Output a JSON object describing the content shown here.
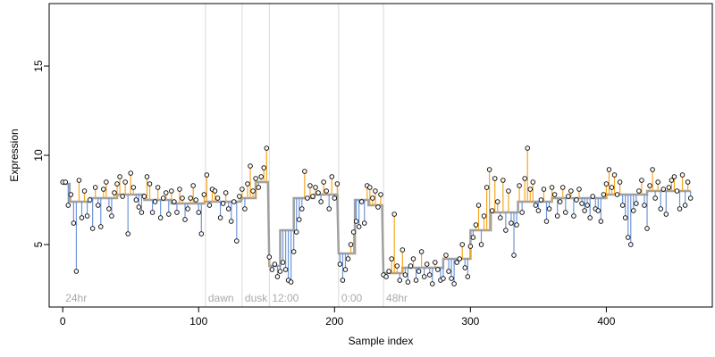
{
  "chart_data": {
    "type": "scatter",
    "title": "",
    "xlabel": "Sample index",
    "ylabel": "Expression",
    "xlim": [
      -10,
      478
    ],
    "ylim": [
      1.5,
      18.5
    ],
    "xticks": [
      0,
      100,
      200,
      300,
      400
    ],
    "yticks": [
      5,
      10,
      15
    ],
    "grid": false,
    "legend": "none",
    "phases": [
      {
        "label": "24hr",
        "start": 0,
        "divider": null
      },
      {
        "label": "dawn",
        "start": 105,
        "divider": 105
      },
      {
        "label": "dusk",
        "start": 132,
        "divider": 132
      },
      {
        "label": "12:00",
        "start": 152,
        "divider": 152
      },
      {
        "label": "0:00",
        "start": 203,
        "divider": 203
      },
      {
        "label": "48hr",
        "start": 236,
        "divider": 236
      }
    ],
    "colors": {
      "fit_line": "#a0a0a0",
      "above": "#f5a623",
      "below": "#6f96d8",
      "divider": "#d9d9d9",
      "phase_label": "#aaaaaa"
    },
    "segments": [
      {
        "x0": 0,
        "x1": 5,
        "y": 8.4
      },
      {
        "x0": 5,
        "x1": 20,
        "y": 7.4
      },
      {
        "x0": 20,
        "x1": 40,
        "y": 7.6
      },
      {
        "x0": 40,
        "x1": 60,
        "y": 7.8
      },
      {
        "x0": 60,
        "x1": 80,
        "y": 7.5
      },
      {
        "x0": 80,
        "x1": 104,
        "y": 7.3
      },
      {
        "x0": 105,
        "x1": 131,
        "y": 7.4
      },
      {
        "x0": 132,
        "x1": 142,
        "y": 7.6
      },
      {
        "x0": 142,
        "x1": 151,
        "y": 8.5
      },
      {
        "x0": 152,
        "x1": 160,
        "y": 3.8
      },
      {
        "x0": 160,
        "x1": 170,
        "y": 5.8
      },
      {
        "x0": 170,
        "x1": 185,
        "y": 7.6
      },
      {
        "x0": 185,
        "x1": 202,
        "y": 7.8
      },
      {
        "x0": 203,
        "x1": 215,
        "y": 4.5
      },
      {
        "x0": 215,
        "x1": 225,
        "y": 7.5
      },
      {
        "x0": 225,
        "x1": 235,
        "y": 7.2
      },
      {
        "x0": 236,
        "x1": 250,
        "y": 3.4
      },
      {
        "x0": 250,
        "x1": 280,
        "y": 3.7
      },
      {
        "x0": 280,
        "x1": 300,
        "y": 4.2
      },
      {
        "x0": 300,
        "x1": 315,
        "y": 5.8
      },
      {
        "x0": 315,
        "x1": 335,
        "y": 6.8
      },
      {
        "x0": 335,
        "x1": 360,
        "y": 7.4
      },
      {
        "x0": 360,
        "x1": 400,
        "y": 7.6
      },
      {
        "x0": 400,
        "x1": 430,
        "y": 7.8
      },
      {
        "x0": 430,
        "x1": 462,
        "y": 8.0
      }
    ],
    "points": [
      [
        0,
        8.5
      ],
      [
        2,
        8.5
      ],
      [
        4,
        7.2
      ],
      [
        6,
        7.8
      ],
      [
        8,
        6.2
      ],
      [
        10,
        3.5
      ],
      [
        12,
        8.6
      ],
      [
        14,
        6.5
      ],
      [
        16,
        8.0
      ],
      [
        18,
        6.6
      ],
      [
        20,
        7.5
      ],
      [
        22,
        5.9
      ],
      [
        24,
        8.2
      ],
      [
        26,
        7.2
      ],
      [
        28,
        6.0
      ],
      [
        30,
        8.1
      ],
      [
        32,
        8.5
      ],
      [
        34,
        7.0
      ],
      [
        36,
        6.6
      ],
      [
        38,
        7.9
      ],
      [
        40,
        8.4
      ],
      [
        42,
        8.8
      ],
      [
        44,
        7.7
      ],
      [
        46,
        8.5
      ],
      [
        48,
        5.6
      ],
      [
        50,
        9.0
      ],
      [
        52,
        8.2
      ],
      [
        54,
        7.5
      ],
      [
        56,
        7.1
      ],
      [
        58,
        6.8
      ],
      [
        60,
        7.7
      ],
      [
        62,
        8.8
      ],
      [
        64,
        8.4
      ],
      [
        66,
        6.8
      ],
      [
        68,
        7.4
      ],
      [
        70,
        8.2
      ],
      [
        72,
        6.5
      ],
      [
        74,
        7.6
      ],
      [
        76,
        7.9
      ],
      [
        78,
        6.7
      ],
      [
        80,
        8.0
      ],
      [
        82,
        7.4
      ],
      [
        84,
        6.8
      ],
      [
        86,
        8.1
      ],
      [
        88,
        7.6
      ],
      [
        90,
        6.4
      ],
      [
        92,
        7.0
      ],
      [
        94,
        7.6
      ],
      [
        96,
        8.3
      ],
      [
        98,
        7.5
      ],
      [
        100,
        6.8
      ],
      [
        102,
        5.6
      ],
      [
        104,
        7.8
      ],
      [
        106,
        8.9
      ],
      [
        108,
        7.2
      ],
      [
        110,
        8.1
      ],
      [
        112,
        8.0
      ],
      [
        114,
        7.6
      ],
      [
        116,
        6.5
      ],
      [
        118,
        7.3
      ],
      [
        120,
        7.9
      ],
      [
        122,
        7.0
      ],
      [
        124,
        6.3
      ],
      [
        126,
        7.4
      ],
      [
        128,
        5.2
      ],
      [
        130,
        7.7
      ],
      [
        132,
        8.1
      ],
      [
        134,
        7.0
      ],
      [
        136,
        8.4
      ],
      [
        138,
        9.4
      ],
      [
        140,
        8.0
      ],
      [
        142,
        8.7
      ],
      [
        144,
        8.2
      ],
      [
        146,
        8.8
      ],
      [
        148,
        9.3
      ],
      [
        150,
        10.4
      ],
      [
        152,
        4.3
      ],
      [
        154,
        3.6
      ],
      [
        156,
        3.9
      ],
      [
        158,
        3.2
      ],
      [
        160,
        3.5
      ],
      [
        162,
        4.0
      ],
      [
        164,
        3.6
      ],
      [
        166,
        3.0
      ],
      [
        168,
        2.9
      ],
      [
        170,
        4.6
      ],
      [
        172,
        5.7
      ],
      [
        174,
        6.4
      ],
      [
        176,
        7.0
      ],
      [
        178,
        9.1
      ],
      [
        180,
        7.6
      ],
      [
        182,
        8.3
      ],
      [
        184,
        7.7
      ],
      [
        186,
        8.2
      ],
      [
        188,
        7.9
      ],
      [
        190,
        7.4
      ],
      [
        192,
        8.5
      ],
      [
        194,
        8.0
      ],
      [
        196,
        7.0
      ],
      [
        198,
        8.8
      ],
      [
        200,
        7.6
      ],
      [
        202,
        8.4
      ],
      [
        204,
        3.9
      ],
      [
        206,
        3.0
      ],
      [
        208,
        3.6
      ],
      [
        210,
        4.2
      ],
      [
        212,
        5.0
      ],
      [
        214,
        5.7
      ],
      [
        216,
        6.3
      ],
      [
        218,
        6.0
      ],
      [
        220,
        7.4
      ],
      [
        222,
        6.2
      ],
      [
        224,
        8.3
      ],
      [
        226,
        8.2
      ],
      [
        228,
        7.6
      ],
      [
        230,
        8.0
      ],
      [
        232,
        7.1
      ],
      [
        234,
        7.8
      ],
      [
        236,
        3.3
      ],
      [
        238,
        3.2
      ],
      [
        240,
        3.5
      ],
      [
        242,
        4.2
      ],
      [
        244,
        6.7
      ],
      [
        246,
        3.8
      ],
      [
        248,
        3.0
      ],
      [
        250,
        4.7
      ],
      [
        252,
        3.3
      ],
      [
        254,
        2.9
      ],
      [
        256,
        3.8
      ],
      [
        258,
        4.2
      ],
      [
        260,
        3.0
      ],
      [
        262,
        3.5
      ],
      [
        264,
        4.6
      ],
      [
        266,
        3.2
      ],
      [
        268,
        3.9
      ],
      [
        270,
        3.3
      ],
      [
        272,
        2.8
      ],
      [
        274,
        4.0
      ],
      [
        276,
        3.6
      ],
      [
        278,
        3.0
      ],
      [
        280,
        3.1
      ],
      [
        282,
        4.4
      ],
      [
        284,
        3.5
      ],
      [
        286,
        3.1
      ],
      [
        288,
        2.8
      ],
      [
        290,
        4.0
      ],
      [
        292,
        4.2
      ],
      [
        294,
        5.0
      ],
      [
        296,
        3.7
      ],
      [
        298,
        3.2
      ],
      [
        300,
        4.9
      ],
      [
        302,
        5.4
      ],
      [
        304,
        6.1
      ],
      [
        306,
        7.2
      ],
      [
        308,
        5.0
      ],
      [
        310,
        6.6
      ],
      [
        312,
        8.2
      ],
      [
        314,
        9.2
      ],
      [
        316,
        6.9
      ],
      [
        318,
        8.7
      ],
      [
        320,
        7.4
      ],
      [
        322,
        6.5
      ],
      [
        324,
        8.6
      ],
      [
        326,
        5.8
      ],
      [
        328,
        8.0
      ],
      [
        330,
        6.2
      ],
      [
        332,
        4.4
      ],
      [
        334,
        6.1
      ],
      [
        336,
        8.3
      ],
      [
        338,
        6.8
      ],
      [
        340,
        8.7
      ],
      [
        342,
        10.4
      ],
      [
        344,
        8.1
      ],
      [
        346,
        8.5
      ],
      [
        348,
        7.2
      ],
      [
        350,
        6.9
      ],
      [
        352,
        7.5
      ],
      [
        354,
        8.1
      ],
      [
        356,
        6.3
      ],
      [
        358,
        7.0
      ],
      [
        360,
        8.2
      ],
      [
        362,
        7.8
      ],
      [
        364,
        6.6
      ],
      [
        366,
        7.4
      ],
      [
        368,
        8.2
      ],
      [
        370,
        6.8
      ],
      [
        372,
        7.7
      ],
      [
        374,
        8.0
      ],
      [
        376,
        6.6
      ],
      [
        378,
        7.5
      ],
      [
        380,
        8.1
      ],
      [
        382,
        7.3
      ],
      [
        384,
        6.9
      ],
      [
        386,
        7.2
      ],
      [
        388,
        6.5
      ],
      [
        390,
        7.7
      ],
      [
        392,
        7.0
      ],
      [
        394,
        6.9
      ],
      [
        396,
        6.3
      ],
      [
        398,
        7.8
      ],
      [
        400,
        8.4
      ],
      [
        402,
        9.2
      ],
      [
        404,
        8.2
      ],
      [
        406,
        8.9
      ],
      [
        408,
        7.8
      ],
      [
        410,
        8.5
      ],
      [
        412,
        7.2
      ],
      [
        414,
        6.5
      ],
      [
        416,
        5.4
      ],
      [
        418,
        5.0
      ],
      [
        420,
        6.9
      ],
      [
        422,
        7.3
      ],
      [
        424,
        8.0
      ],
      [
        426,
        8.6
      ],
      [
        428,
        7.2
      ],
      [
        430,
        5.9
      ],
      [
        432,
        8.3
      ],
      [
        434,
        9.2
      ],
      [
        436,
        7.6
      ],
      [
        438,
        8.5
      ],
      [
        440,
        7.0
      ],
      [
        442,
        8.1
      ],
      [
        444,
        6.7
      ],
      [
        446,
        8.2
      ],
      [
        448,
        8.6
      ],
      [
        450,
        8.8
      ],
      [
        452,
        8.0
      ],
      [
        454,
        7.0
      ],
      [
        456,
        8.9
      ],
      [
        458,
        7.2
      ],
      [
        460,
        8.5
      ],
      [
        462,
        7.6
      ]
    ]
  }
}
